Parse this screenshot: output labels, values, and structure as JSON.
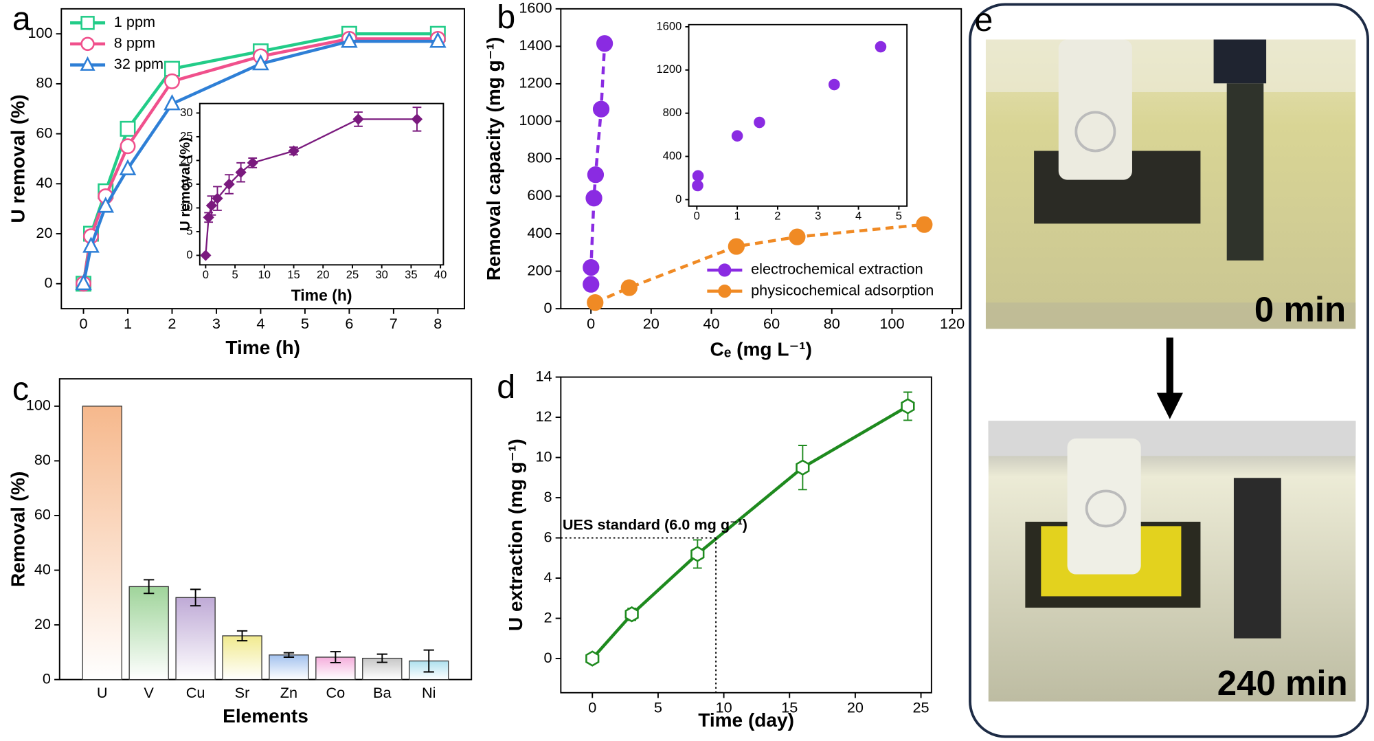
{
  "chart_data": [
    {
      "type": "line",
      "panel_label": "a",
      "xlabel": "Time (h)",
      "ylabel": "U removal (%)",
      "xlim": [
        -0.5,
        8.6
      ],
      "ylim": [
        -10,
        110
      ],
      "xticks": [
        0,
        1,
        2,
        3,
        4,
        5,
        6,
        7,
        8
      ],
      "yticks": [
        0,
        20,
        40,
        60,
        80,
        100
      ],
      "x": [
        0,
        0.17,
        0.5,
        1,
        2,
        4,
        6,
        8
      ],
      "legend": "upper left",
      "series": [
        {
          "name": "1 ppm",
          "color": "#22cc88",
          "marker": "square",
          "values": [
            0,
            20,
            37,
            62,
            86,
            93,
            100,
            100
          ]
        },
        {
          "name": "8 ppm",
          "color": "#f0508c",
          "marker": "circle",
          "values": [
            0,
            19,
            35,
            55,
            81,
            91,
            98,
            98
          ]
        },
        {
          "name": "32 ppm",
          "color": "#2e7fd6",
          "marker": "triangle",
          "values": [
            0,
            15,
            31,
            46,
            72,
            88,
            97,
            97
          ]
        }
      ],
      "inset": {
        "type": "line",
        "xlabel": "Time (h)",
        "ylabel": "U removal (%)",
        "xlim": [
          -1,
          40.5
        ],
        "ylim": [
          -2,
          32
        ],
        "xticks": [
          0,
          5,
          10,
          15,
          20,
          25,
          30,
          35,
          40
        ],
        "yticks": [
          0,
          5,
          10,
          15,
          20,
          25,
          30
        ],
        "x": [
          0,
          0.5,
          1,
          2,
          4,
          6,
          8,
          15,
          26,
          36
        ],
        "series": [
          {
            "color": "#7a1a7e",
            "marker": "diamond",
            "values": [
              0,
              8,
              10.5,
              12,
              15,
              17.5,
              19.5,
              22,
              28.7,
              28.7
            ],
            "errors": [
              0,
              1,
              2,
              2.5,
              2,
              2,
              1,
              0.8,
              1.5,
              2.5
            ]
          }
        ]
      }
    },
    {
      "type": "line",
      "line_style": "dashed",
      "panel_label": "b",
      "xlabel": "Cₑ (mg L⁻¹)",
      "ylabel": "Removal capacity (mg g⁻¹)",
      "xlim": [
        -10,
        123
      ],
      "ylim": [
        0,
        1600
      ],
      "xticks": [
        0,
        20,
        40,
        60,
        80,
        100,
        120
      ],
      "yticks": [
        0,
        200,
        400,
        600,
        800,
        1000,
        1200,
        1400,
        1600
      ],
      "legend": "lower right",
      "series": [
        {
          "name": "electrochemical extraction",
          "color": "#8a2be2",
          "marker": "sphere",
          "x": [
            0.02,
            0.03,
            1.0,
            1.55,
            3.4,
            4.55
          ],
          "values": [
            130,
            220,
            590,
            715,
            1065,
            1415
          ]
        },
        {
          "name": "physicochemical adsorption",
          "color": "#f08a24",
          "marker": "sphere",
          "x": [
            1.4,
            12.7,
            48.3,
            68.5,
            110.7
          ],
          "values": [
            33,
            112,
            332,
            383,
            449
          ]
        }
      ],
      "inset": {
        "type": "scatter",
        "xlim": [
          -0.2,
          5.2
        ],
        "ylim": [
          -60,
          1620
        ],
        "xticks": [
          0,
          1,
          2,
          3,
          4,
          5
        ],
        "yticks": [
          0,
          400,
          800,
          1200,
          1600
        ],
        "series": [
          {
            "color": "#8a2be2",
            "marker": "sphere",
            "x": [
              0.02,
              0.03,
              1.0,
              1.55,
              3.4,
              4.55
            ],
            "values": [
              130,
              220,
              590,
              715,
              1065,
              1415
            ]
          }
        ]
      }
    },
    {
      "type": "bar",
      "panel_label": "c",
      "xlabel": "Elements",
      "ylabel": "Removal (%)",
      "categories": [
        "U",
        "V",
        "Cu",
        "Sr",
        "Zn",
        "Co",
        "Ba",
        "Ni"
      ],
      "values": [
        100,
        34,
        30,
        16,
        9,
        8.2,
        7.8,
        6.8
      ],
      "errors": [
        0,
        2.5,
        3,
        1.8,
        0.8,
        2,
        1.5,
        4
      ],
      "colors": [
        "#f6b88c",
        "#9fd49a",
        "#bfaad6",
        "#f1ea8e",
        "#a2c1ee",
        "#f5aedc",
        "#c6c6c6",
        "#aee0ee"
      ],
      "ylim": [
        0,
        110
      ],
      "yticks": [
        0,
        20,
        40,
        60,
        80,
        100
      ]
    },
    {
      "type": "line",
      "panel_label": "d",
      "xlabel": "Time (day)",
      "ylabel": "U extraction (mg g⁻¹)",
      "xlim": [
        -2.4,
        25.8
      ],
      "ylim": [
        -1.7,
        14
      ],
      "xticks": [
        0,
        5,
        10,
        15,
        20,
        25
      ],
      "yticks": [
        0,
        2,
        4,
        6,
        8,
        10,
        12,
        14
      ],
      "x": [
        0,
        3,
        8,
        16,
        24
      ],
      "series": [
        {
          "color": "#1e8a1e",
          "marker": "hexagon",
          "values": [
            0,
            2.2,
            5.2,
            9.5,
            12.55
          ],
          "errors": [
            0,
            0.3,
            0.7,
            1.1,
            0.7
          ]
        }
      ],
      "annotation": "UES standard (6.0 mg g⁻¹)",
      "reference_x": 9.4,
      "reference_y": 6
    }
  ],
  "photo_panel": {
    "panel_label": "e",
    "photos": [
      {
        "caption": "0 min"
      },
      {
        "caption": "240 min"
      }
    ]
  }
}
